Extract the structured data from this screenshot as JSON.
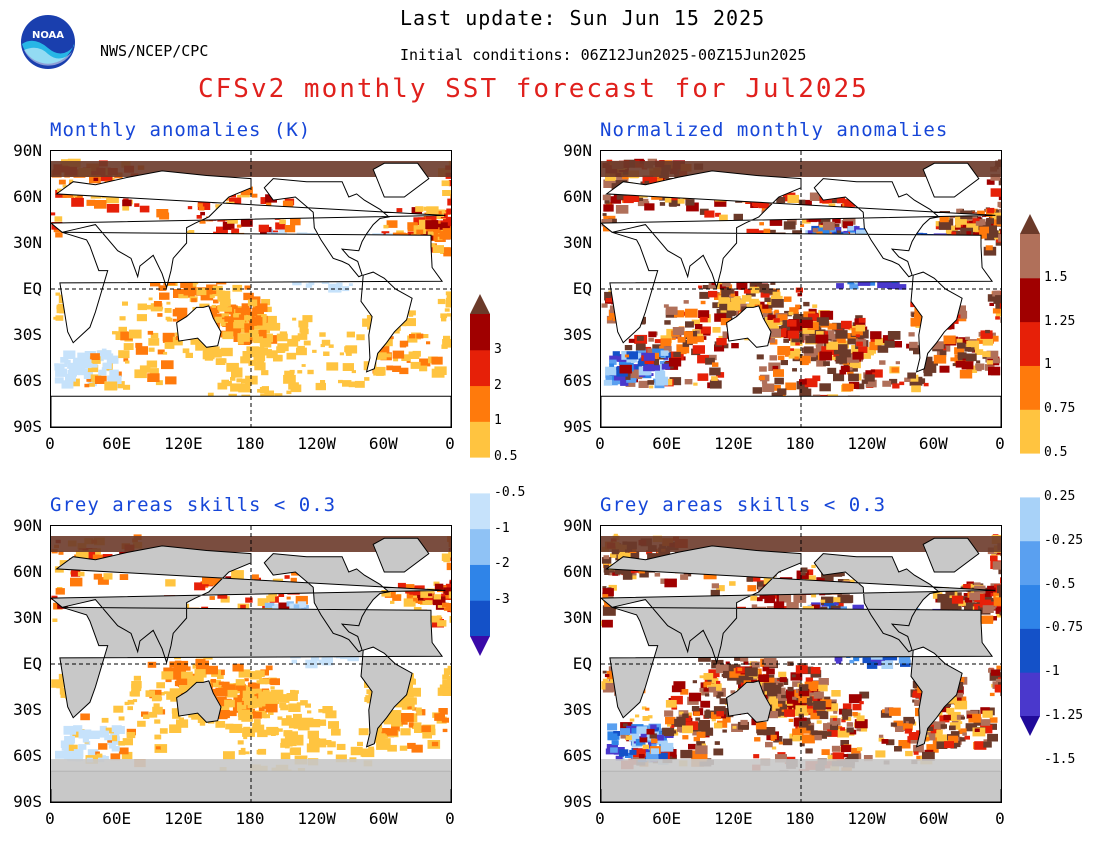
{
  "header": {
    "agency": "NWS/NCEP/CPC",
    "last_update": "Last update: Sun Jun 15 2025",
    "initial_conditions": "Initial conditions: 06Z12Jun2025-00Z15Jun2025",
    "title": "CFSv2 monthly SST forecast for Jul2025",
    "logo_text": "NOAA"
  },
  "panels": [
    {
      "title": "Monthly anomalies (K)"
    },
    {
      "title": "Normalized monthly anomalies"
    },
    {
      "title": "Grey areas skills < 0.3"
    },
    {
      "title": "Grey areas skills < 0.3"
    }
  ],
  "axes": {
    "lat_labels": [
      "90N",
      "60N",
      "30N",
      "EQ",
      "30S",
      "60S",
      "90S"
    ],
    "lon_labels": [
      "0",
      "60E",
      "120E",
      "180",
      "120W",
      "60W",
      "0"
    ]
  },
  "colorbar_left": {
    "labels": [
      "3",
      "2",
      "1",
      "0.5",
      "-0.5",
      "-1",
      "-2",
      "-3"
    ],
    "colors": [
      "#3a0aa8",
      "#1451c8",
      "#2f84e8",
      "#8fc2f5",
      "#c6e2fb",
      "#ffffff",
      "#ffc440",
      "#ff7a0c",
      "#e62008",
      "#a00000",
      "#6b3a2a"
    ]
  },
  "colorbar_right": {
    "labels": [
      "1.5",
      "1.25",
      "1",
      "0.75",
      "0.5",
      "0.25",
      "-0.25",
      "-0.5",
      "-0.75",
      "-1",
      "-1.25",
      "-1.5"
    ],
    "colors": [
      "#200a9a",
      "#4a38cc",
      "#1451c8",
      "#2f84e8",
      "#5aa0f0",
      "#a8d2f8",
      "#ffffff",
      "#ffc440",
      "#ff7a0c",
      "#e62008",
      "#a00000",
      "#b0705a",
      "#6b3a2a"
    ]
  },
  "colors": {
    "title_red": "#e0201c",
    "panel_title_blue": "#1646d8",
    "land_grey": "#c8c8c8"
  }
}
